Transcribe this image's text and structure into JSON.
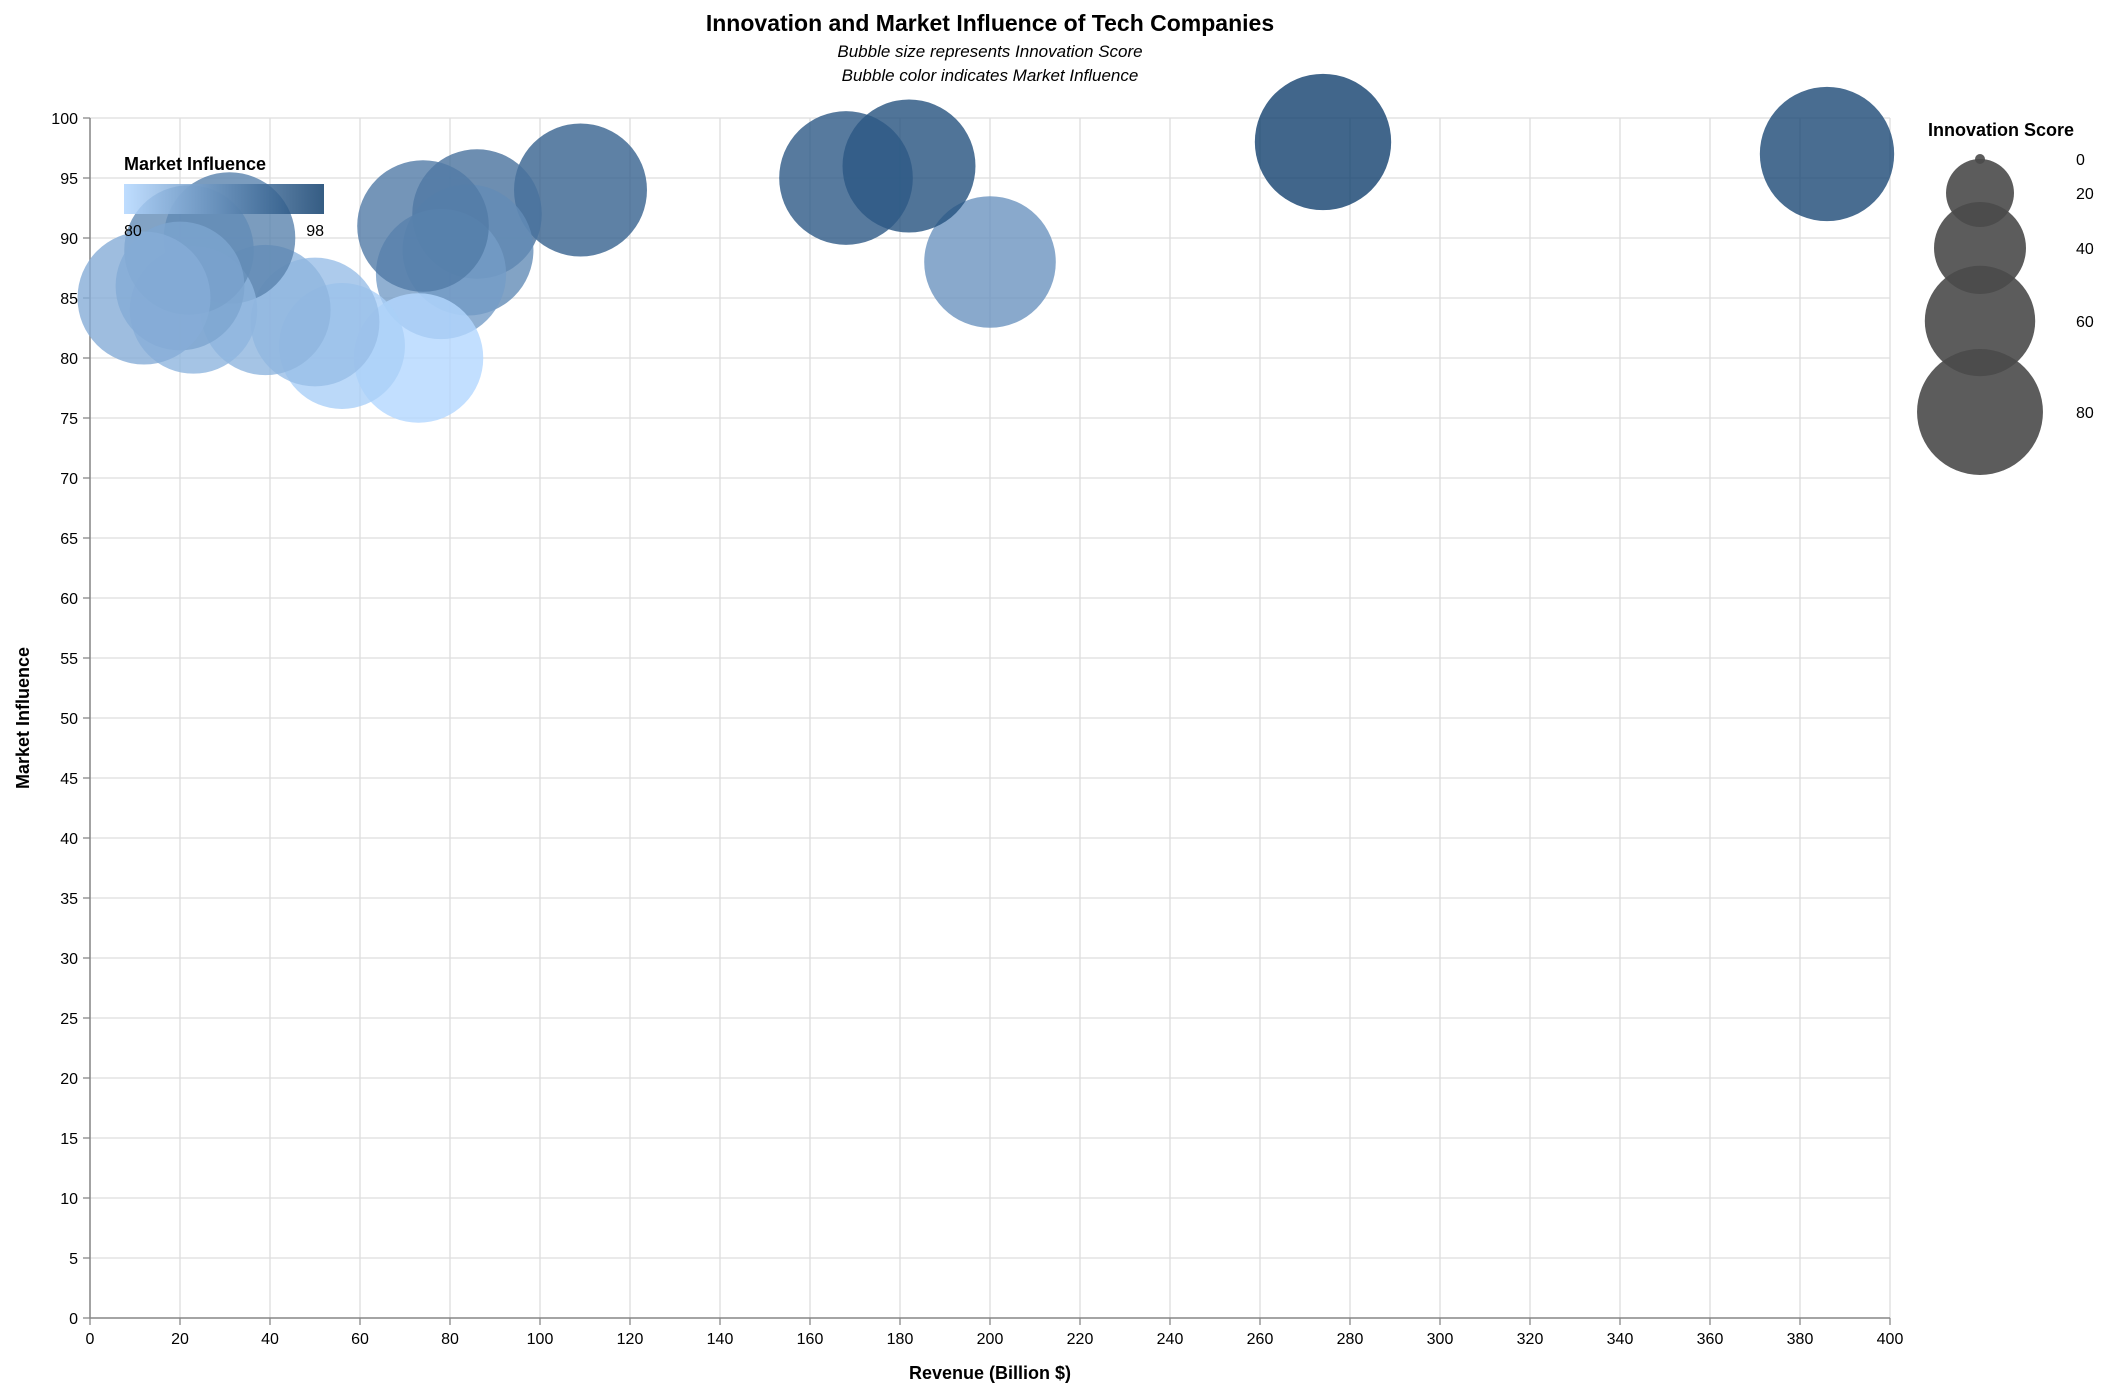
{
  "chart_data": {
    "type": "scatter",
    "title": "Innovation and Market Influence of Tech Companies",
    "subtitle": [
      "Bubble size represents Innovation Score",
      "Bubble color indicates Market Influence"
    ],
    "xlabel": "Revenue (Billion $)",
    "ylabel": "Market Influence",
    "xlim": [
      0,
      400
    ],
    "ylim": [
      0,
      100
    ],
    "x_ticks": [
      0,
      20,
      40,
      60,
      80,
      100,
      120,
      140,
      160,
      180,
      200,
      220,
      240,
      260,
      280,
      300,
      320,
      340,
      360,
      380,
      400
    ],
    "y_ticks": [
      0,
      5,
      10,
      15,
      20,
      25,
      30,
      35,
      40,
      45,
      50,
      55,
      60,
      65,
      70,
      75,
      80,
      85,
      90,
      95,
      100
    ],
    "grid": true,
    "size_legend": {
      "title": "Innovation Score",
      "values": [
        0,
        20,
        40,
        60,
        80
      ],
      "placement": "right"
    },
    "color_legend": {
      "title": "Market Influence",
      "min": 80,
      "max": 98,
      "color_low": "#b3d7ff",
      "color_high": "#12406e",
      "placement": "top-left"
    },
    "points": [
      {
        "x": 386,
        "y": 97,
        "size": 92
      },
      {
        "x": 274,
        "y": 98,
        "size": 95
      },
      {
        "x": 200,
        "y": 88,
        "size": 88
      },
      {
        "x": 182,
        "y": 96,
        "size": 90
      },
      {
        "x": 168,
        "y": 95,
        "size": 91
      },
      {
        "x": 109,
        "y": 94,
        "size": 90
      },
      {
        "x": 86,
        "y": 92,
        "size": 85
      },
      {
        "x": 84,
        "y": 89,
        "size": 87
      },
      {
        "x": 78,
        "y": 87,
        "size": 86
      },
      {
        "x": 74,
        "y": 91,
        "size": 88
      },
      {
        "x": 73,
        "y": 80,
        "size": 85
      },
      {
        "x": 56,
        "y": 81,
        "size": 80
      },
      {
        "x": 50,
        "y": 83,
        "size": 84
      },
      {
        "x": 39,
        "y": 84,
        "size": 86
      },
      {
        "x": 31,
        "y": 90,
        "size": 88
      },
      {
        "x": 23,
        "y": 84,
        "size": 82
      },
      {
        "x": 22,
        "y": 89,
        "size": 85
      },
      {
        "x": 20,
        "y": 86,
        "size": 84
      },
      {
        "x": 12,
        "y": 85,
        "size": 90
      }
    ]
  }
}
